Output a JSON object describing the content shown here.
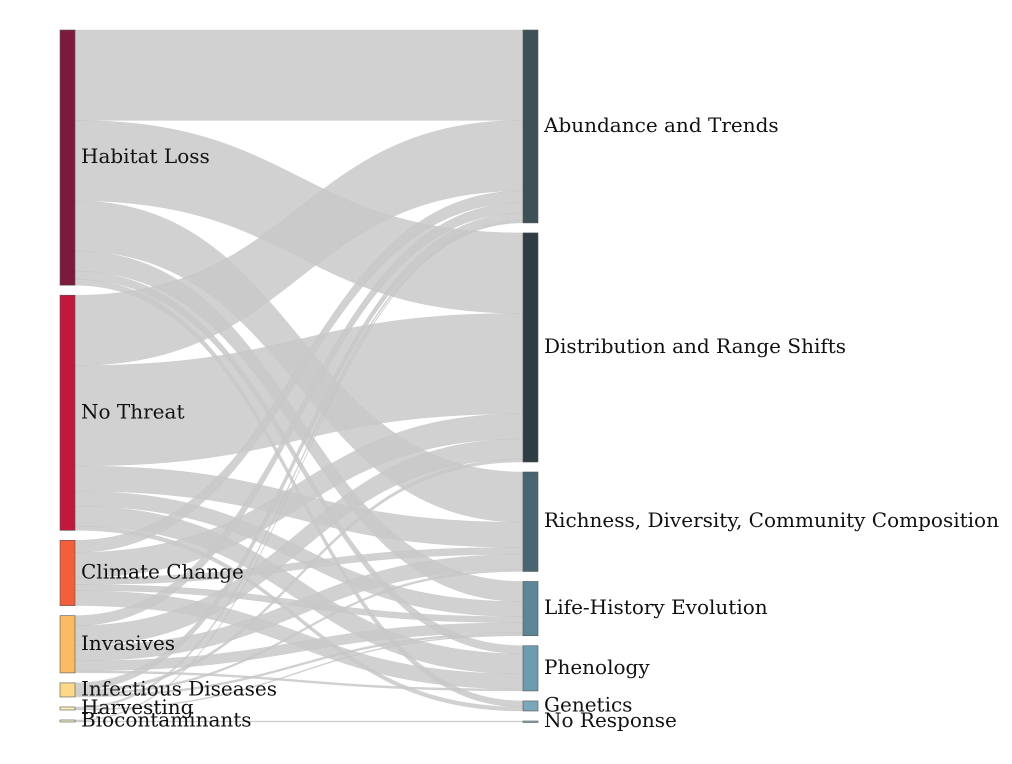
{
  "chart_data": {
    "type": "sankey",
    "sources": [
      {
        "name": "Habitat Loss",
        "color": "#7b1a3c"
      },
      {
        "name": "No Threat",
        "color": "#c0193c"
      },
      {
        "name": "Climate Change",
        "color": "#f25f3a"
      },
      {
        "name": "Invasives",
        "color": "#f9bb62"
      },
      {
        "name": "Infectious Diseases",
        "color": "#fcd98a"
      },
      {
        "name": "Harvesting",
        "color": "#fbf0b8"
      },
      {
        "name": "Biocontaminants",
        "color": "#f3f0c8"
      }
    ],
    "targets": [
      {
        "name": "Abundance and Trends",
        "color": "#3d5058"
      },
      {
        "name": "Distribution and Range Shifts",
        "color": "#2e3c43"
      },
      {
        "name": "Richness, Diversity, Community Composition",
        "color": "#4a6572"
      },
      {
        "name": "Life-History Evolution",
        "color": "#5d8799"
      },
      {
        "name": "Phenology",
        "color": "#6b9cb0"
      },
      {
        "name": "Genetics",
        "color": "#7aa8ba"
      },
      {
        "name": "No Response",
        "color": "#88b3c4"
      }
    ],
    "links": [
      {
        "source": "Habitat Loss",
        "target": "Abundance and Trends",
        "value": 90
      },
      {
        "source": "Habitat Loss",
        "target": "Distribution and Range Shifts",
        "value": 80
      },
      {
        "source": "Habitat Loss",
        "target": "Richness, Diversity, Community Composition",
        "value": 50
      },
      {
        "source": "Habitat Loss",
        "target": "Life-History Evolution",
        "value": 20
      },
      {
        "source": "Habitat Loss",
        "target": "Phenology",
        "value": 8
      },
      {
        "source": "Habitat Loss",
        "target": "Genetics",
        "value": 6
      },
      {
        "source": "No Threat",
        "target": "Abundance and Trends",
        "value": 70
      },
      {
        "source": "No Threat",
        "target": "Distribution and Range Shifts",
        "value": 100
      },
      {
        "source": "No Threat",
        "target": "Richness, Diversity, Community Composition",
        "value": 25
      },
      {
        "source": "No Threat",
        "target": "Life-History Evolution",
        "value": 15
      },
      {
        "source": "No Threat",
        "target": "Phenology",
        "value": 20
      },
      {
        "source": "No Threat",
        "target": "Genetics",
        "value": 4
      },
      {
        "source": "Climate Change",
        "target": "Abundance and Trends",
        "value": 12
      },
      {
        "source": "Climate Change",
        "target": "Distribution and Range Shifts",
        "value": 25
      },
      {
        "source": "Climate Change",
        "target": "Richness, Diversity, Community Composition",
        "value": 7
      },
      {
        "source": "Climate Change",
        "target": "Life-History Evolution",
        "value": 6
      },
      {
        "source": "Climate Change",
        "target": "Phenology",
        "value": 15
      },
      {
        "source": "Invasives",
        "target": "Abundance and Trends",
        "value": 10
      },
      {
        "source": "Invasives",
        "target": "Distribution and Range Shifts",
        "value": 20
      },
      {
        "source": "Invasives",
        "target": "Richness, Diversity, Community Composition",
        "value": 15
      },
      {
        "source": "Invasives",
        "target": "Life-History Evolution",
        "value": 10
      },
      {
        "source": "Invasives",
        "target": "Phenology",
        "value": 2
      },
      {
        "source": "Infectious Diseases",
        "target": "Abundance and Trends",
        "value": 7
      },
      {
        "source": "Infectious Diseases",
        "target": "Distribution and Range Shifts",
        "value": 3
      },
      {
        "source": "Infectious Diseases",
        "target": "Richness, Diversity, Community Composition",
        "value": 2
      },
      {
        "source": "Infectious Diseases",
        "target": "Life-History Evolution",
        "value": 2
      },
      {
        "source": "Harvesting",
        "target": "Abundance and Trends",
        "value": 2
      },
      {
        "source": "Harvesting",
        "target": "Life-History Evolution",
        "value": 1
      },
      {
        "source": "Biocontaminants",
        "target": "Abundance and Trends",
        "value": 1
      },
      {
        "source": "Biocontaminants",
        "target": "No Response",
        "value": 1
      }
    ]
  }
}
